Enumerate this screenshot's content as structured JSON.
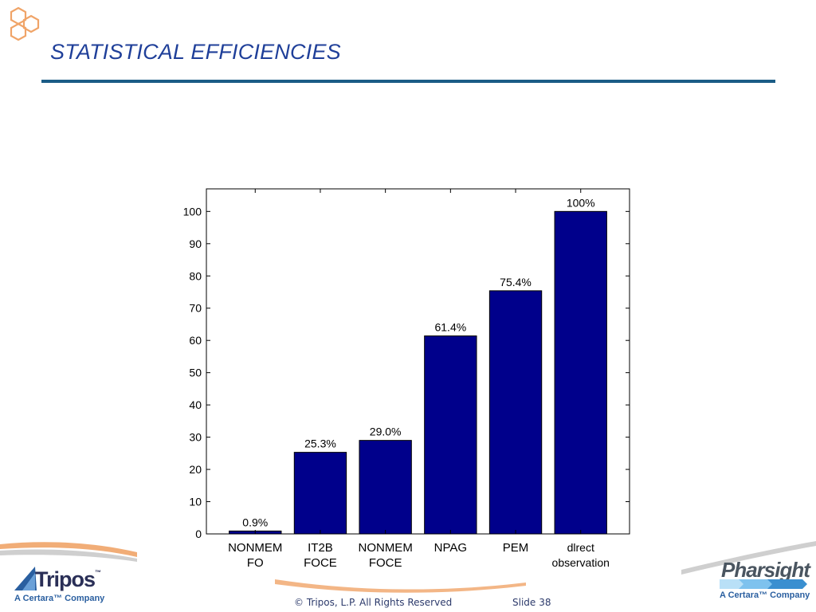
{
  "slide": {
    "title": "STATISTICAL EFFICIENCIES",
    "footer_copyright": "© Tripos, L.P. All Rights Reserved",
    "slide_label": "Slide",
    "slide_number": "38"
  },
  "logos": {
    "left_name": "Tripos",
    "left_trademark": "™",
    "left_subtitle": "A Certara™ Company",
    "right_name": "Pharsight",
    "right_subtitle": "A Certara™ Company"
  },
  "colors": {
    "title": "#1f3f99",
    "rule": "#1b5c86",
    "bar_fill": "#00008b",
    "accent_orange": "#f0a468"
  },
  "icons": [
    "hexagon-logo-icon",
    "tripos-triangle-icon",
    "pharsight-stripes-icon"
  ],
  "chart_data": {
    "type": "bar",
    "categories": [
      [
        "NONMEM",
        "FO"
      ],
      [
        "IT2B",
        "FOCE"
      ],
      [
        "NONMEM",
        "FOCE"
      ],
      [
        "NPAG"
      ],
      [
        "PEM"
      ],
      [
        "dlrect",
        "observation"
      ]
    ],
    "values": [
      0.9,
      25.3,
      29.0,
      61.4,
      75.4,
      100
    ],
    "data_labels": [
      "0.9%",
      "25.3%",
      "29.0%",
      "61.4%",
      "75.4%",
      "100%"
    ],
    "yticks": [
      0,
      10,
      20,
      30,
      40,
      50,
      60,
      70,
      80,
      90,
      100
    ],
    "ylim": [
      0,
      107
    ],
    "xlabel": "",
    "ylabel": "",
    "grid": false,
    "legend": "none"
  }
}
